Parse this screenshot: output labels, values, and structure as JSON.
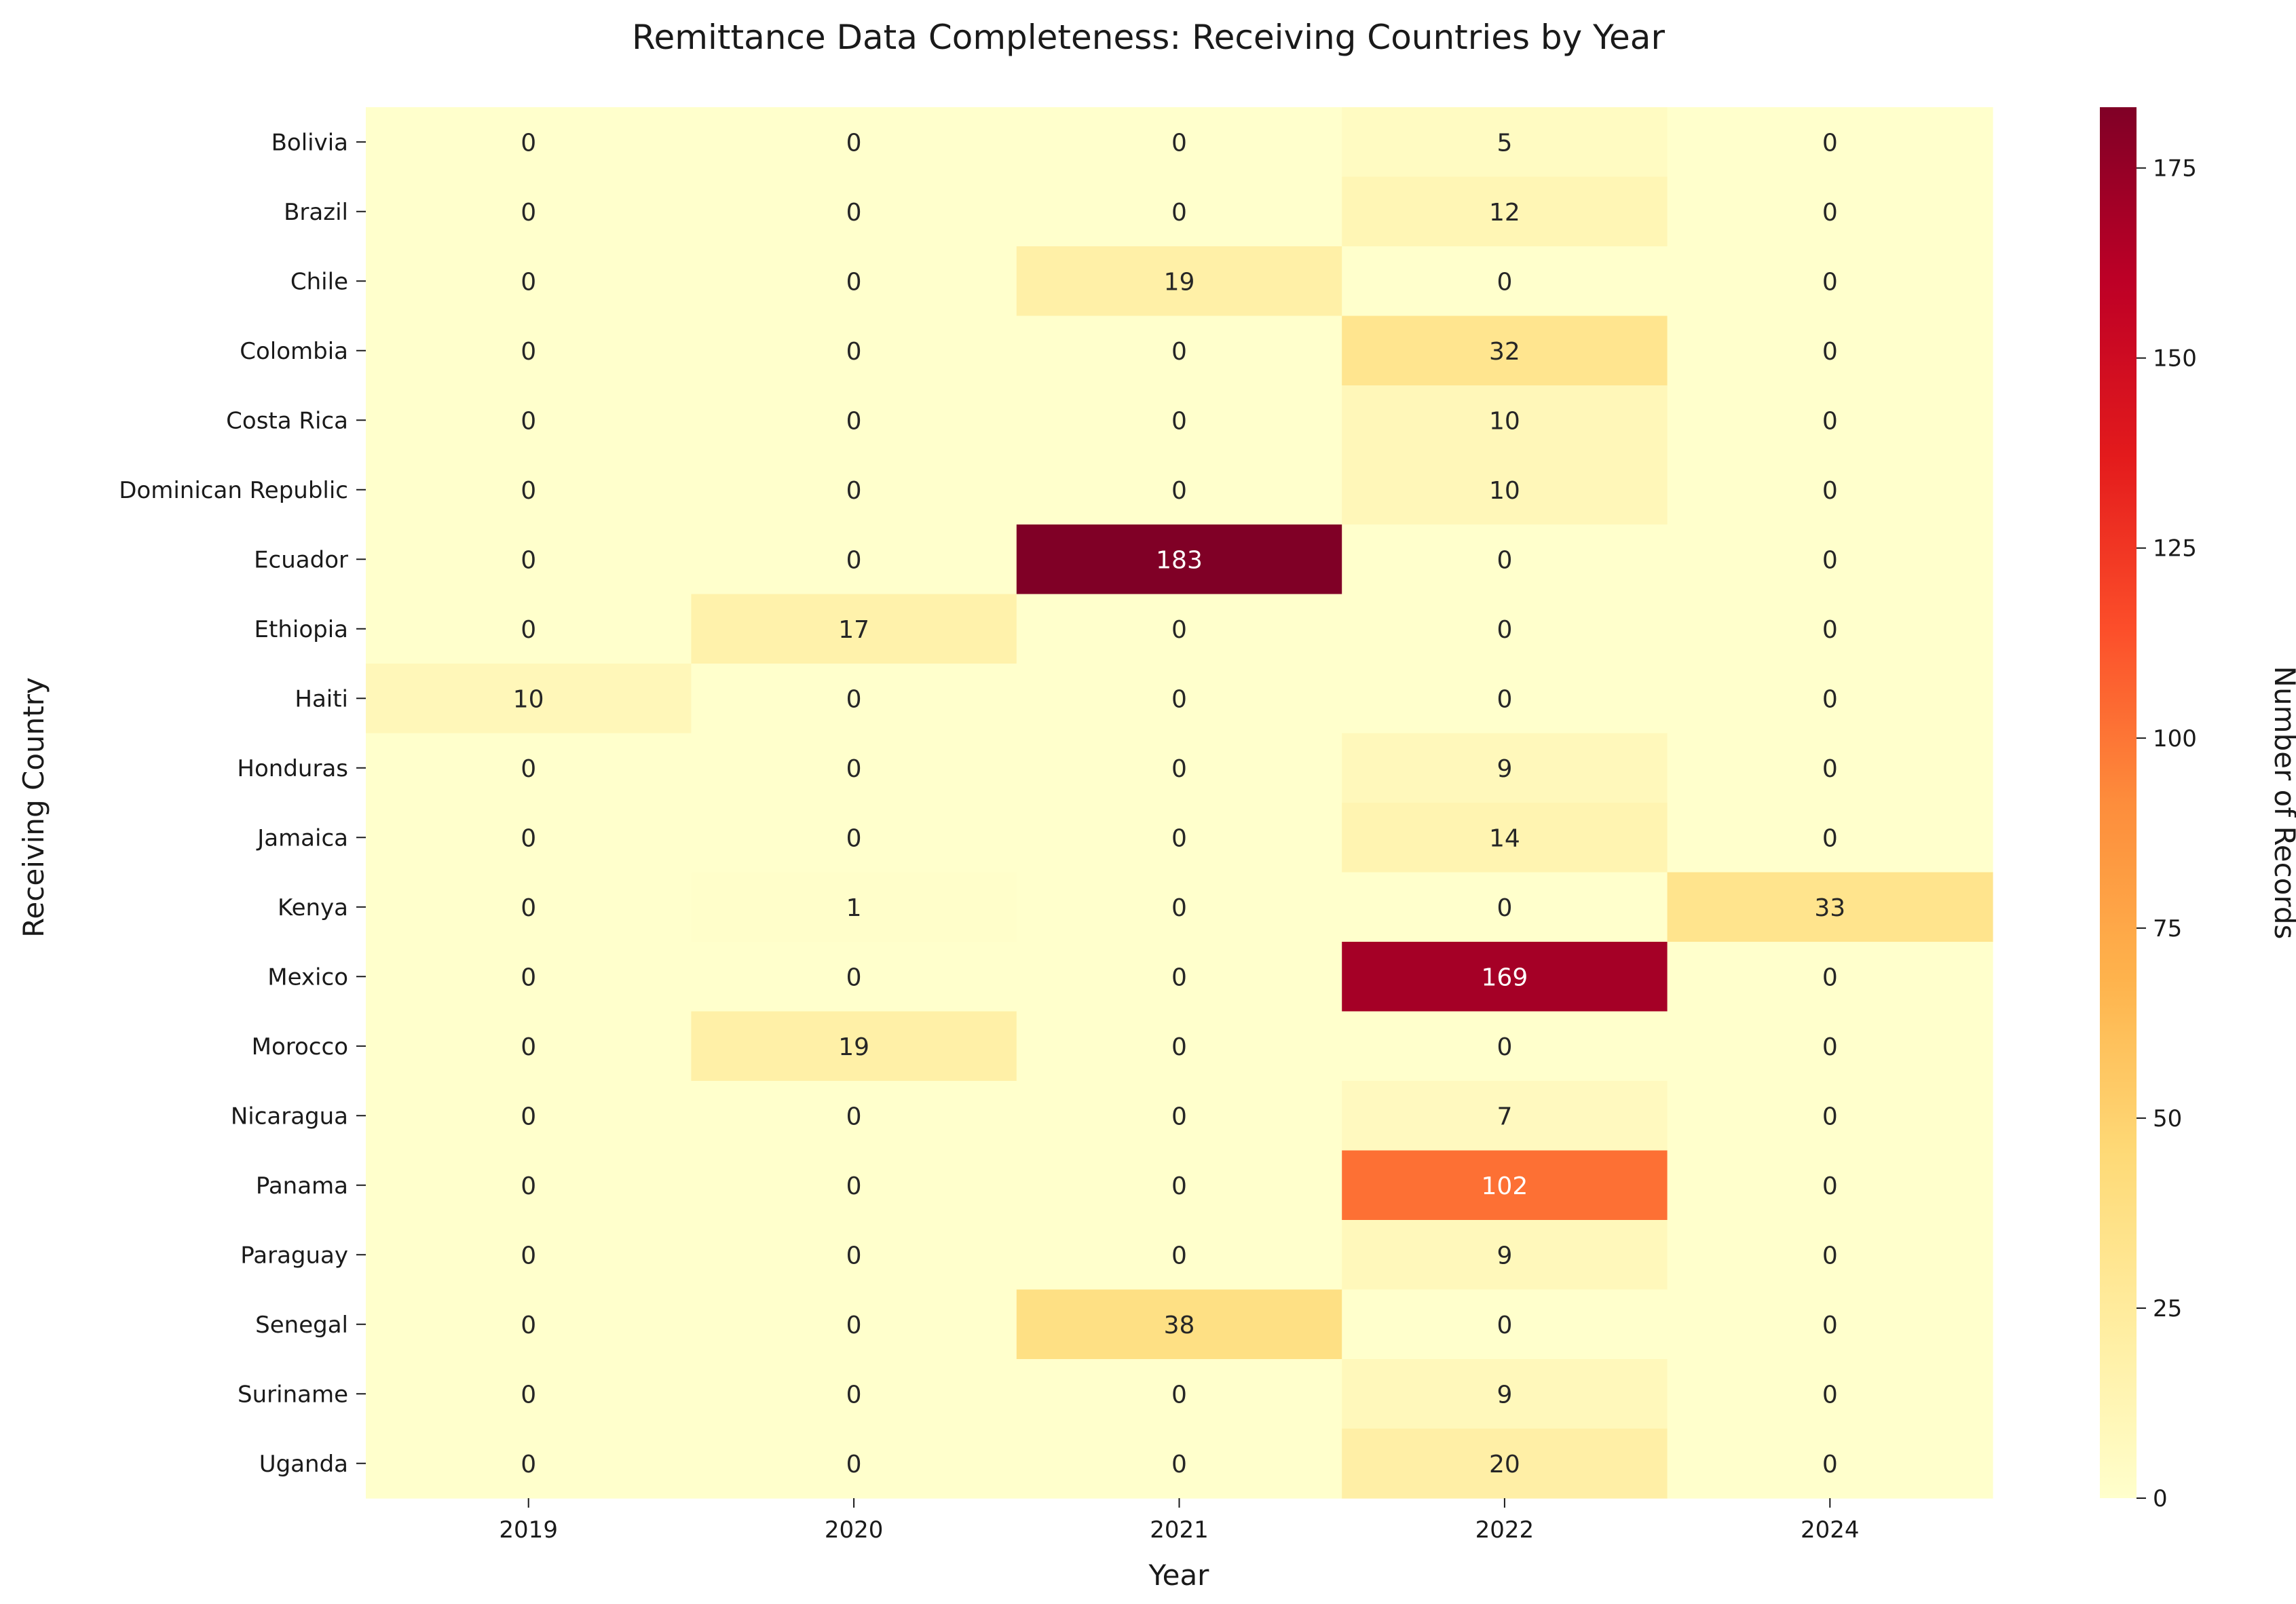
{
  "chart_data": {
    "type": "heatmap",
    "title": "Remittance Data Completeness: Receiving Countries by Year",
    "xlabel": "Year",
    "ylabel": "Receiving Country",
    "x": [
      "2019",
      "2020",
      "2021",
      "2022",
      "2024"
    ],
    "y": [
      "Bolivia",
      "Brazil",
      "Chile",
      "Colombia",
      "Costa Rica",
      "Dominican Republic",
      "Ecuador",
      "Ethiopia",
      "Haiti",
      "Honduras",
      "Jamaica",
      "Kenya",
      "Mexico",
      "Morocco",
      "Nicaragua",
      "Panama",
      "Paraguay",
      "Senegal",
      "Suriname",
      "Uganda"
    ],
    "values": [
      [
        0,
        0,
        0,
        5,
        0
      ],
      [
        0,
        0,
        0,
        12,
        0
      ],
      [
        0,
        0,
        19,
        0,
        0
      ],
      [
        0,
        0,
        0,
        32,
        0
      ],
      [
        0,
        0,
        0,
        10,
        0
      ],
      [
        0,
        0,
        0,
        10,
        0
      ],
      [
        0,
        0,
        183,
        0,
        0
      ],
      [
        0,
        17,
        0,
        0,
        0
      ],
      [
        10,
        0,
        0,
        0,
        0
      ],
      [
        0,
        0,
        0,
        9,
        0
      ],
      [
        0,
        0,
        0,
        14,
        0
      ],
      [
        0,
        1,
        0,
        0,
        33
      ],
      [
        0,
        0,
        0,
        169,
        0
      ],
      [
        0,
        19,
        0,
        0,
        0
      ],
      [
        0,
        0,
        0,
        7,
        0
      ],
      [
        0,
        0,
        0,
        102,
        0
      ],
      [
        0,
        0,
        0,
        9,
        0
      ],
      [
        0,
        0,
        38,
        0,
        0
      ],
      [
        0,
        0,
        0,
        9,
        0
      ],
      [
        0,
        0,
        0,
        20,
        0
      ]
    ],
    "colorbar": {
      "label": "Number of Records",
      "range": [
        0,
        183
      ],
      "ticks": [
        "0",
        "25",
        "50",
        "75",
        "100",
        "125",
        "150",
        "175"
      ],
      "colormap": "YlOrRd"
    },
    "grid": false,
    "legend": "colorbar-right"
  }
}
